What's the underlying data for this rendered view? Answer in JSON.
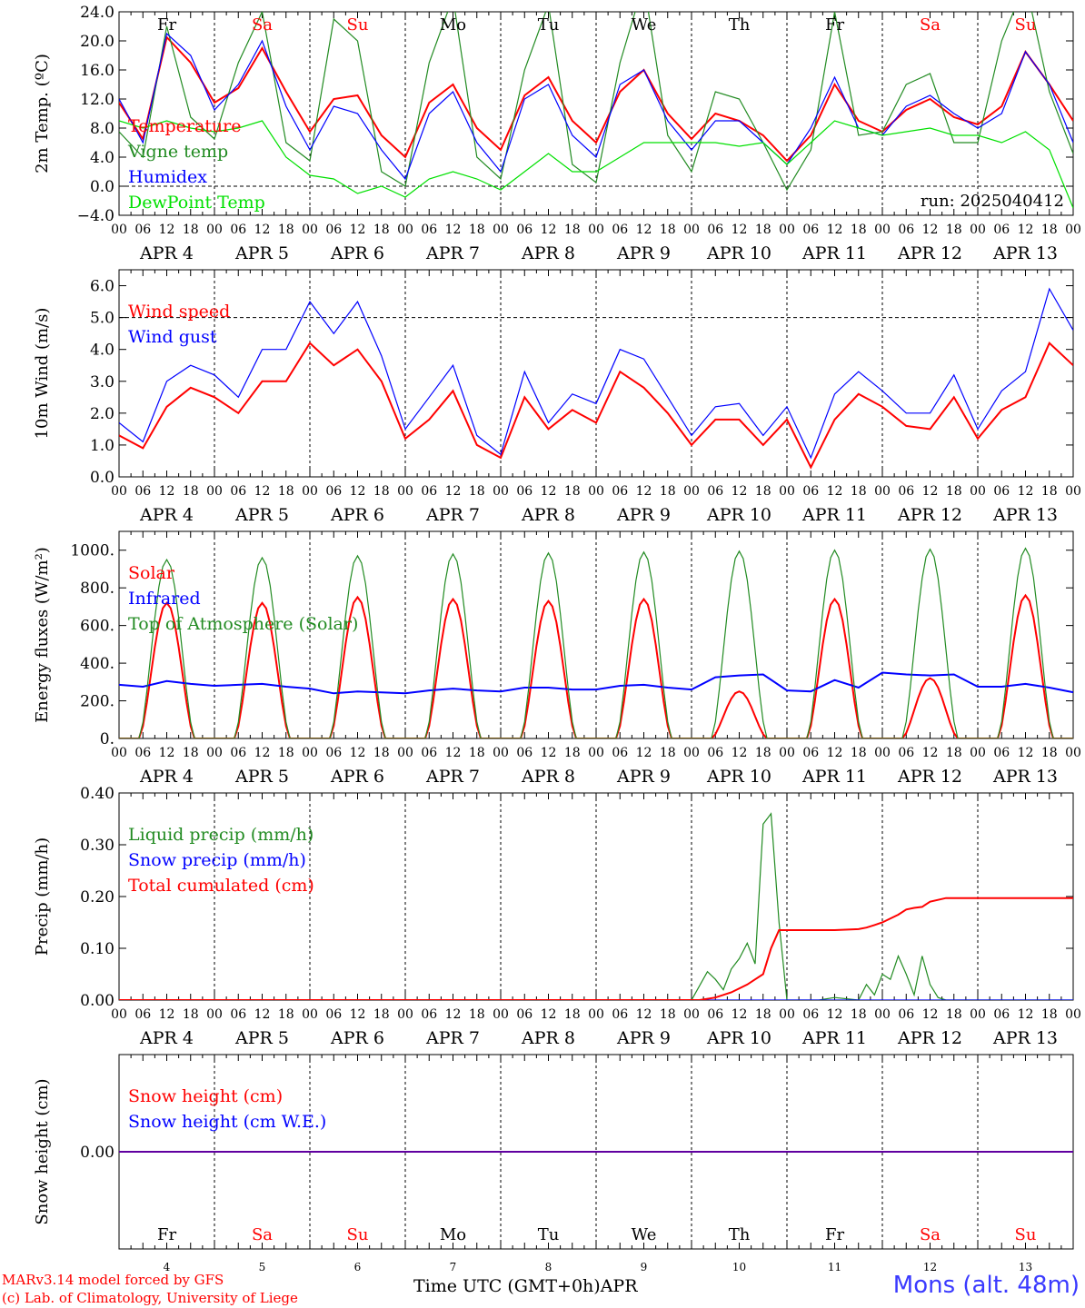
{
  "footer": {
    "model_line": "MARv3.14 model forced by GFS",
    "lab_line": "(c) Lab. of Climatology, University of Liege",
    "time_label": "Time UTC (GMT+0h)",
    "month_label": "APR",
    "station": "Mons (alt. 48m)"
  },
  "colors": {
    "red": "#ff0000",
    "blue": "#0000ff",
    "green": "#228b22",
    "light_green": "#00e000",
    "black": "#000000"
  },
  "days": {
    "labels": [
      "Fr",
      "Sa",
      "Su",
      "Mo",
      "Tu",
      "We",
      "Th",
      "Fr",
      "Sa",
      "Su"
    ],
    "weekend": [
      false,
      true,
      true,
      false,
      false,
      false,
      false,
      false,
      true,
      true
    ],
    "dates": [
      "APR  4",
      "APR  5",
      "APR  6",
      "APR  7",
      "APR  8",
      "APR  9",
      "APR 10",
      "APR 11",
      "APR 12",
      "APR 13"
    ],
    "numbers": [
      "4",
      "5",
      "6",
      "7",
      "8",
      "9",
      "10",
      "11",
      "12",
      "13"
    ],
    "hour_ticks": [
      "00",
      "06",
      "12",
      "18"
    ],
    "end_hour": "00"
  },
  "chart_data": [
    {
      "type": "line",
      "ylabel": "2m Temp. (ºC)",
      "ylim": [
        -4,
        24
      ],
      "yticks": [
        "24.0",
        "20.0",
        "16.0",
        "12.0",
        "8.0",
        "4.0",
        "0.0",
        "−4.0"
      ],
      "ytick_values": [
        24,
        20,
        16,
        12,
        8,
        4,
        0,
        -4
      ],
      "annotation": "run: 2025040412",
      "x_hours": [
        0,
        6,
        12,
        18,
        24,
        30,
        36,
        42,
        48,
        54,
        60,
        66,
        72,
        78,
        84,
        90,
        96,
        102,
        108,
        114,
        120,
        126,
        132,
        138,
        144,
        150,
        156,
        162,
        168,
        174,
        180,
        186,
        192,
        198,
        204,
        210,
        216,
        222,
        228,
        234,
        240
      ],
      "series": [
        {
          "name": "Temperature",
          "color": "#ff0000",
          "values": [
            11.5,
            6.5,
            20.5,
            17,
            11.5,
            13.5,
            19,
            13,
            7.5,
            12,
            12.5,
            7,
            4,
            11.5,
            14,
            8,
            5,
            12.5,
            15,
            9,
            6,
            13,
            16,
            10,
            6.5,
            10,
            9,
            7,
            3.5,
            7,
            14,
            9,
            7.5,
            10.5,
            12,
            9.5,
            8.5,
            11,
            18.5,
            14,
            9
          ]
        },
        {
          "name": "Vigne temp",
          "color": "#228b22",
          "values": [
            7.5,
            4,
            22,
            9.5,
            6.5,
            17,
            24,
            6,
            3.5,
            23,
            20,
            2,
            0,
            17,
            26,
            4,
            1,
            16,
            25,
            3,
            0.5,
            17,
            28,
            7,
            2,
            13,
            12,
            6,
            -0.5,
            5,
            24,
            7,
            7.5,
            14,
            15.5,
            6,
            6,
            20,
            28,
            13,
            4.5
          ]
        },
        {
          "name": "Humidex",
          "color": "#0000ff",
          "values": [
            12,
            6,
            21,
            18,
            10.5,
            14,
            20,
            11,
            5,
            11,
            10,
            5,
            1,
            10,
            13,
            6,
            2,
            12,
            14,
            7,
            4,
            14,
            16,
            9,
            5,
            9,
            9,
            6,
            3,
            8,
            15,
            8,
            7,
            11,
            12.5,
            10,
            8,
            10,
            18.5,
            14,
            6
          ]
        },
        {
          "name": "DewPoint Temp",
          "color": "#00e000",
          "values": [
            9,
            8,
            9,
            8,
            7.5,
            8,
            9,
            4,
            1.5,
            1,
            -1,
            0,
            -1.5,
            1,
            2,
            1,
            -0.5,
            2,
            4.5,
            2,
            2,
            4,
            6,
            6,
            6,
            6,
            5.5,
            6,
            3,
            6,
            9,
            8,
            7,
            7.5,
            8,
            7,
            7,
            6,
            7.5,
            5,
            -3
          ]
        }
      ]
    },
    {
      "type": "line",
      "ylabel": "10m Wind (m/s)",
      "ylim": [
        0,
        6.5
      ],
      "yticks": [
        "6.0",
        "5.0",
        "4.0",
        "3.0",
        "2.0",
        "1.0",
        "0.0"
      ],
      "ytick_values": [
        6,
        5,
        4,
        3,
        2,
        1,
        0
      ],
      "x_hours": [
        0,
        6,
        12,
        18,
        24,
        30,
        36,
        42,
        48,
        54,
        60,
        66,
        72,
        78,
        84,
        90,
        96,
        102,
        108,
        114,
        120,
        126,
        132,
        138,
        144,
        150,
        156,
        162,
        168,
        174,
        180,
        186,
        192,
        198,
        204,
        210,
        216,
        222,
        228,
        234,
        240
      ],
      "series": [
        {
          "name": "Wind speed",
          "color": "#ff0000",
          "values": [
            1.3,
            0.9,
            2.2,
            2.8,
            2.5,
            2,
            3,
            3,
            4.2,
            3.5,
            4,
            3,
            1.2,
            1.8,
            2.7,
            1,
            0.6,
            2.5,
            1.5,
            2.1,
            1.7,
            3.3,
            2.8,
            2,
            1,
            1.8,
            1.8,
            1,
            1.8,
            0.3,
            1.8,
            2.6,
            2.2,
            1.6,
            1.5,
            2.5,
            1.2,
            2.1,
            2.5,
            4.2,
            3.5
          ]
        },
        {
          "name": "Wind gust",
          "color": "#0000ff",
          "values": [
            1.7,
            1.1,
            3,
            3.5,
            3.2,
            2.5,
            4,
            4,
            5.5,
            4.5,
            5.5,
            3.8,
            1.5,
            2.5,
            3.5,
            1.3,
            0.7,
            3.3,
            1.7,
            2.6,
            2.3,
            4,
            3.7,
            2.5,
            1.3,
            2.2,
            2.3,
            1.3,
            2.2,
            0.6,
            2.6,
            3.3,
            2.7,
            2,
            2,
            3.2,
            1.5,
            2.7,
            3.3,
            5.9,
            4.6
          ]
        }
      ],
      "reference_line": 5
    },
    {
      "type": "line",
      "ylabel": "Energy fluxes (W/m²)",
      "ylim": [
        0,
        1100
      ],
      "yticks": [
        "1000.",
        "800.",
        "600.",
        "400.",
        "200.",
        "0."
      ],
      "ytick_values": [
        1000,
        800,
        600,
        400,
        200,
        0
      ],
      "x_hours": [
        0,
        6,
        12,
        18,
        24,
        30,
        36,
        42,
        48,
        54,
        60,
        66,
        72,
        78,
        84,
        90,
        96,
        102,
        108,
        114,
        120,
        126,
        132,
        138,
        144,
        150,
        156,
        162,
        168,
        174,
        180,
        186,
        192,
        198,
        204,
        210,
        216,
        222,
        228,
        234,
        240
      ],
      "series": [
        {
          "name": "Solar",
          "color": "#ff0000",
          "daily_peak": [
            720,
            720,
            750,
            740,
            730,
            740,
            250,
            740,
            320,
            760
          ]
        },
        {
          "name": "Infrared",
          "color": "#0000ff",
          "values": [
            285,
            275,
            305,
            290,
            280,
            285,
            290,
            275,
            265,
            240,
            250,
            245,
            240,
            255,
            265,
            255,
            250,
            270,
            270,
            260,
            260,
            280,
            285,
            270,
            260,
            325,
            335,
            340,
            255,
            250,
            310,
            270,
            350,
            340,
            335,
            340,
            275,
            275,
            290,
            270,
            245
          ]
        },
        {
          "name": "Top of Atmosphere (Solar)",
          "color": "#228b22",
          "daily_peak": [
            950,
            960,
            970,
            980,
            985,
            990,
            995,
            1000,
            1005,
            1010
          ]
        }
      ]
    },
    {
      "type": "line",
      "ylabel": "Precip (mm/h)",
      "ylim": [
        0,
        0.4
      ],
      "yticks": [
        "0.40",
        "0.30",
        "0.20",
        "0.10",
        "0.00"
      ],
      "ytick_values": [
        0.4,
        0.3,
        0.2,
        0.1,
        0
      ],
      "series": [
        {
          "name": "Liquid precip (mm/h)",
          "color": "#228b22",
          "x": [
            0,
            144,
            148,
            150,
            152,
            154,
            156,
            158,
            160,
            162,
            164,
            166,
            168,
            170,
            172,
            176,
            180,
            186,
            188,
            190,
            192,
            194,
            196,
            198,
            200,
            202,
            204,
            206,
            208,
            240
          ],
          "values": [
            0,
            0,
            0.055,
            0.04,
            0.02,
            0.06,
            0.08,
            0.11,
            0.07,
            0.34,
            0.36,
            0.15,
            0,
            0,
            0,
            0,
            0.005,
            0,
            0.03,
            0.01,
            0.05,
            0.04,
            0.085,
            0.05,
            0.01,
            0.085,
            0.03,
            0.005,
            0,
            0
          ]
        },
        {
          "name": "Snow precip (mm/h)",
          "color": "#0000ff",
          "x": [
            0,
            240
          ],
          "values": [
            0,
            0
          ]
        },
        {
          "name": "Total cumulated (cm)",
          "color": "#ff0000",
          "x": [
            0,
            146,
            150,
            154,
            158,
            160,
            162,
            164,
            166,
            180,
            186,
            188,
            190,
            192,
            196,
            198,
            200,
            202,
            204,
            208,
            240
          ],
          "values": [
            0,
            0,
            0.005,
            0.015,
            0.03,
            0.04,
            0.05,
            0.1,
            0.135,
            0.135,
            0.137,
            0.14,
            0.145,
            0.15,
            0.165,
            0.175,
            0.178,
            0.18,
            0.19,
            0.197,
            0.197
          ]
        }
      ]
    },
    {
      "type": "line",
      "ylabel": "Snow height (cm)",
      "ylim": [
        -1,
        1
      ],
      "yticks": [
        "0.00"
      ],
      "ytick_values": [
        0
      ],
      "series": [
        {
          "name": "Snow height (cm)",
          "color": "#ff0000",
          "x": [
            0,
            240
          ],
          "values": [
            0,
            0
          ]
        },
        {
          "name": "Snow height (cm W.E.)",
          "color": "#0000ff",
          "x": [
            0,
            240
          ],
          "values": [
            0,
            0
          ]
        }
      ]
    }
  ]
}
